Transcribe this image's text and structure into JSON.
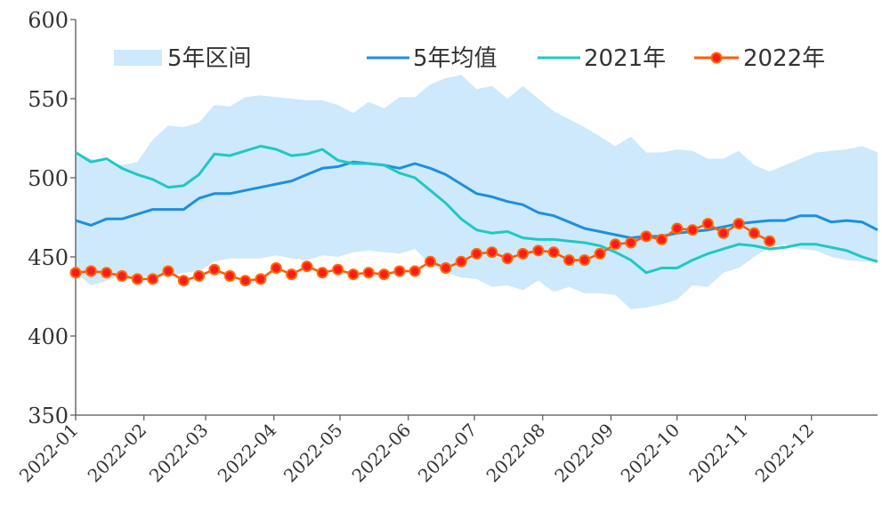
{
  "chart_data": {
    "type": "line",
    "title": "",
    "xlabel": "",
    "ylabel": "",
    "ylim": [
      350,
      600
    ],
    "yticks": [
      350,
      400,
      450,
      500,
      550,
      600
    ],
    "xlim": [
      "2022-01-01",
      "2022-12-31"
    ],
    "x_tick_labels": [
      "2022-01",
      "2022-02",
      "2022-03",
      "2022-04",
      "2022-05",
      "2022-06",
      "2022-07",
      "2022-08",
      "2022-09",
      "2022-10",
      "2022-11",
      "2022-12"
    ],
    "grid": false,
    "legend_position": "top",
    "band": {
      "name": "5年区间",
      "color": "#cde9fb",
      "x": [
        "2022-01-01",
        "2022-01-08",
        "2022-01-15",
        "2022-01-22",
        "2022-01-29",
        "2022-02-05",
        "2022-02-12",
        "2022-02-19",
        "2022-02-26",
        "2022-03-05",
        "2022-03-12",
        "2022-03-19",
        "2022-03-26",
        "2022-04-02",
        "2022-04-09",
        "2022-04-16",
        "2022-04-23",
        "2022-04-30",
        "2022-05-07",
        "2022-05-14",
        "2022-05-21",
        "2022-05-28",
        "2022-06-04",
        "2022-06-11",
        "2022-06-18",
        "2022-06-25",
        "2022-07-02",
        "2022-07-09",
        "2022-07-16",
        "2022-07-23",
        "2022-07-30",
        "2022-08-06",
        "2022-08-13",
        "2022-08-20",
        "2022-08-27",
        "2022-09-03",
        "2022-09-10",
        "2022-09-17",
        "2022-09-24",
        "2022-10-01",
        "2022-10-08",
        "2022-10-15",
        "2022-10-22",
        "2022-10-29",
        "2022-11-05",
        "2022-11-12",
        "2022-11-19",
        "2022-11-26",
        "2022-12-03",
        "2022-12-10",
        "2022-12-17",
        "2022-12-24",
        "2022-12-31"
      ],
      "upper": [
        516,
        512,
        510,
        508,
        510,
        524,
        533,
        532,
        535,
        546,
        545,
        551,
        552,
        551,
        550,
        549,
        549,
        546,
        541,
        548,
        544,
        551,
        551,
        559,
        563,
        565,
        556,
        558,
        550,
        558,
        550,
        542,
        537,
        532,
        526,
        520,
        526,
        516,
        516,
        518,
        517,
        512,
        512,
        517,
        508,
        504,
        508,
        512,
        516,
        517,
        518,
        520,
        516
      ],
      "lower": [
        440,
        432,
        435,
        438,
        437,
        438,
        437,
        440,
        441,
        447,
        449,
        449,
        449,
        451,
        449,
        448,
        451,
        450,
        453,
        454,
        453,
        452,
        455,
        445,
        440,
        437,
        436,
        431,
        432,
        429,
        435,
        428,
        431,
        427,
        427,
        426,
        417,
        418,
        420,
        423,
        432,
        431,
        440,
        443,
        450,
        456,
        458,
        455,
        454,
        450,
        448,
        447,
        447
      ]
    },
    "series": [
      {
        "name": "5年均值",
        "color": "#1d8fe0",
        "x": [
          "2022-01-01",
          "2022-01-08",
          "2022-01-15",
          "2022-01-22",
          "2022-01-29",
          "2022-02-05",
          "2022-02-12",
          "2022-02-19",
          "2022-02-26",
          "2022-03-05",
          "2022-03-12",
          "2022-03-19",
          "2022-03-26",
          "2022-04-02",
          "2022-04-09",
          "2022-04-16",
          "2022-04-23",
          "2022-04-30",
          "2022-05-07",
          "2022-05-14",
          "2022-05-21",
          "2022-05-28",
          "2022-06-04",
          "2022-06-11",
          "2022-06-18",
          "2022-06-25",
          "2022-07-02",
          "2022-07-09",
          "2022-07-16",
          "2022-07-23",
          "2022-07-30",
          "2022-08-06",
          "2022-08-13",
          "2022-08-20",
          "2022-08-27",
          "2022-09-03",
          "2022-09-10",
          "2022-09-17",
          "2022-09-24",
          "2022-10-01",
          "2022-10-08",
          "2022-10-15",
          "2022-10-22",
          "2022-10-29",
          "2022-11-05",
          "2022-11-12",
          "2022-11-19",
          "2022-11-26",
          "2022-12-03",
          "2022-12-10",
          "2022-12-17",
          "2022-12-24",
          "2022-12-31"
        ],
        "values": [
          473,
          470,
          474,
          474,
          477,
          480,
          480,
          480,
          487,
          490,
          490,
          492,
          494,
          496,
          498,
          502,
          506,
          507,
          510,
          509,
          508,
          506,
          509,
          506,
          502,
          496,
          490,
          488,
          485,
          483,
          478,
          476,
          472,
          468,
          466,
          464,
          462,
          463,
          463,
          465,
          466,
          467,
          469,
          471,
          472,
          473,
          473,
          476,
          476,
          472,
          473,
          472,
          467
        ]
      },
      {
        "name": "2021年",
        "color": "#1fc8c4",
        "x": [
          "2022-01-01",
          "2022-01-08",
          "2022-01-15",
          "2022-01-22",
          "2022-01-29",
          "2022-02-05",
          "2022-02-12",
          "2022-02-19",
          "2022-02-26",
          "2022-03-05",
          "2022-03-12",
          "2022-03-19",
          "2022-03-26",
          "2022-04-02",
          "2022-04-09",
          "2022-04-16",
          "2022-04-23",
          "2022-04-30",
          "2022-05-07",
          "2022-05-14",
          "2022-05-21",
          "2022-05-28",
          "2022-06-04",
          "2022-06-11",
          "2022-06-18",
          "2022-06-25",
          "2022-07-02",
          "2022-07-09",
          "2022-07-16",
          "2022-07-23",
          "2022-07-30",
          "2022-08-06",
          "2022-08-13",
          "2022-08-20",
          "2022-08-27",
          "2022-09-03",
          "2022-09-10",
          "2022-09-17",
          "2022-09-24",
          "2022-10-01",
          "2022-10-08",
          "2022-10-15",
          "2022-10-22",
          "2022-10-29",
          "2022-11-05",
          "2022-11-12",
          "2022-11-19",
          "2022-11-26",
          "2022-12-03",
          "2022-12-10",
          "2022-12-17",
          "2022-12-24",
          "2022-12-31"
        ],
        "values": [
          516,
          510,
          512,
          506,
          502,
          499,
          494,
          495,
          502,
          515,
          514,
          517,
          520,
          518,
          514,
          515,
          518,
          511,
          509,
          509,
          508,
          503,
          500,
          492,
          484,
          474,
          467,
          465,
          466,
          462,
          461,
          461,
          460,
          459,
          457,
          453,
          448,
          440,
          443,
          443,
          448,
          452,
          455,
          458,
          457,
          455,
          456,
          458,
          458,
          456,
          454,
          450,
          447
        ]
      },
      {
        "name": "2022年",
        "color": "#ff5a0a",
        "marker_color": "#ff1a1a",
        "x": [
          "2022-01-01",
          "2022-01-08",
          "2022-01-15",
          "2022-01-22",
          "2022-01-29",
          "2022-02-05",
          "2022-02-12",
          "2022-02-19",
          "2022-02-26",
          "2022-03-05",
          "2022-03-12",
          "2022-03-19",
          "2022-03-26",
          "2022-04-02",
          "2022-04-09",
          "2022-04-16",
          "2022-04-23",
          "2022-04-30",
          "2022-05-07",
          "2022-05-14",
          "2022-05-21",
          "2022-05-28",
          "2022-06-04",
          "2022-06-11",
          "2022-06-18",
          "2022-06-25",
          "2022-07-02",
          "2022-07-09",
          "2022-07-16",
          "2022-07-23",
          "2022-07-30",
          "2022-08-06",
          "2022-08-13",
          "2022-08-20",
          "2022-08-27",
          "2022-09-03",
          "2022-09-10",
          "2022-09-17",
          "2022-09-24",
          "2022-10-01",
          "2022-10-08",
          "2022-10-15",
          "2022-10-22",
          "2022-10-29",
          "2022-11-05",
          "2022-11-12"
        ],
        "values": [
          440,
          441,
          440,
          438,
          436,
          436,
          441,
          435,
          438,
          442,
          438,
          435,
          436,
          443,
          439,
          444,
          440,
          442,
          439,
          440,
          439,
          441,
          441,
          447,
          443,
          447,
          452,
          453,
          449,
          452,
          454,
          453,
          448,
          448,
          452,
          458,
          459,
          463,
          461,
          468,
          467,
          471,
          465,
          471,
          465,
          460
        ]
      }
    ]
  }
}
